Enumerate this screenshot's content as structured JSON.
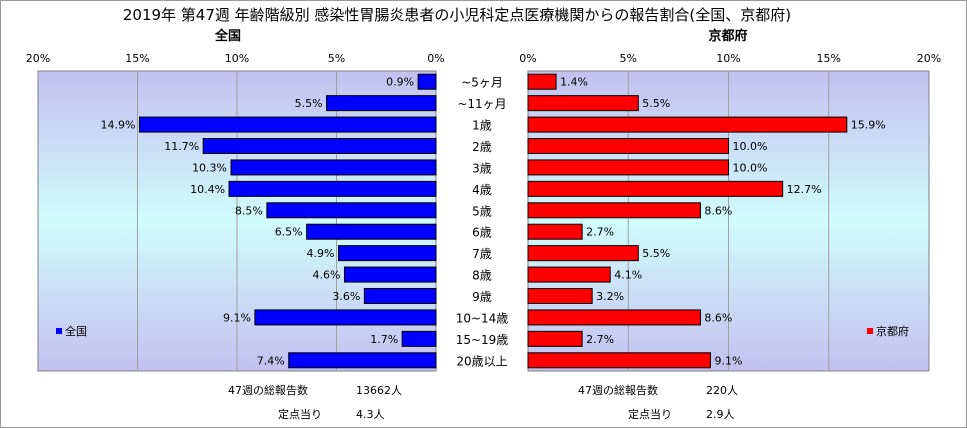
{
  "chart_data": {
    "type": "bar",
    "title": "2019年 第47週 年齢階級別 感染性胃腸炎患者の小児科定点医療機関からの報告割合(全国、京都府)",
    "categories": [
      "~5ヶ月",
      "~11ヶ月",
      "1歳",
      "2歳",
      "3歳",
      "4歳",
      "5歳",
      "6歳",
      "7歳",
      "8歳",
      "9歳",
      "10~14歳",
      "15~19歳",
      "20歳以上"
    ],
    "xlim": [
      0,
      20
    ],
    "ticks": [
      "0%",
      "5%",
      "10%",
      "15%",
      "20%"
    ],
    "legend_placement": "bottom-inside",
    "series": [
      {
        "name": "全国",
        "color": "#0000ff",
        "values": [
          0.9,
          5.5,
          14.9,
          11.7,
          10.3,
          10.4,
          8.5,
          6.5,
          4.9,
          4.6,
          3.6,
          9.1,
          1.7,
          7.4
        ],
        "labels": [
          "0.9%",
          "5.5%",
          "14.9%",
          "11.7%",
          "10.3%",
          "10.4%",
          "8.5%",
          "6.5%",
          "4.9%",
          "4.6%",
          "3.6%",
          "9.1%",
          "1.7%",
          "7.4%"
        ],
        "summary": {
          "total_label": "47週の総報告数",
          "total_value": "13662人",
          "per_site_label": "定点当り",
          "per_site_value": "4.3人"
        }
      },
      {
        "name": "京都府",
        "color": "#ff0000",
        "values": [
          1.4,
          5.5,
          15.9,
          10.0,
          10.0,
          12.7,
          8.6,
          2.7,
          5.5,
          4.1,
          3.2,
          8.6,
          2.7,
          9.1
        ],
        "labels": [
          "1.4%",
          "5.5%",
          "15.9%",
          "10.0%",
          "10.0%",
          "12.7%",
          "8.6%",
          "2.7%",
          "5.5%",
          "4.1%",
          "3.2%",
          "8.6%",
          "2.7%",
          "9.1%"
        ],
        "summary": {
          "total_label": "47週の総報告数",
          "total_value": "220人",
          "per_site_label": "定点当り",
          "per_site_value": "2.9人"
        }
      }
    ]
  }
}
